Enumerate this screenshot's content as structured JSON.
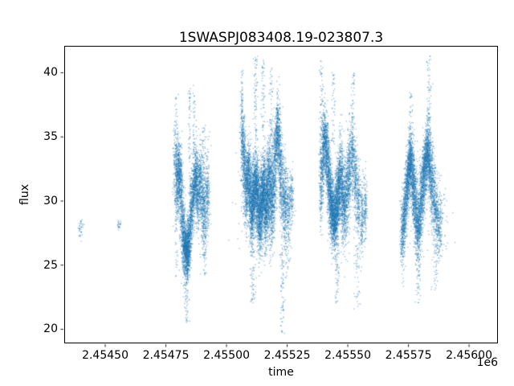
{
  "chart_data": {
    "type": "scatter",
    "title": "1SWASPJ083408.19-023807.3",
    "xlabel": "time",
    "ylabel": "flux",
    "offset_label": "1e6",
    "xlim": [
      2454331,
      2456119
    ],
    "ylim": [
      18.9,
      42.1
    ],
    "xticks": [
      2454500,
      2454750,
      2455000,
      2455250,
      2455500,
      2455750,
      2456000
    ],
    "xtick_labels": [
      "2.45450",
      "2.45475",
      "2.45500",
      "2.45525",
      "2.45550",
      "2.45575",
      "2.45600"
    ],
    "yticks": [
      20,
      25,
      30,
      35,
      40
    ],
    "ytick_labels": [
      "20",
      "25",
      "30",
      "35",
      "40"
    ],
    "grid": false,
    "legend": "none",
    "marker_color": "#1f77b4",
    "marker_alpha": 0.5,
    "marker_size_px": 1.3,
    "streak_format": "[time_center, time_sigma, flux_mean, flux_sigma, n_points]",
    "band_format": "[time_center, time_sigma, flux_min, flux_max, n_points]",
    "clusters": [
      {
        "name": "sparse-early-points",
        "streaks": [
          [
            2454398,
            5,
            27.7,
            0.35,
            25
          ],
          [
            2454404,
            4,
            28.3,
            0.2,
            12
          ],
          [
            2454556,
            5,
            28.15,
            0.25,
            22
          ]
        ],
        "bands": []
      },
      {
        "name": "season-1",
        "streaks": [
          [
            2454790,
            5,
            32.5,
            2.0,
            200
          ],
          [
            2454798,
            4,
            31.5,
            1.5,
            250
          ],
          [
            2454806,
            4,
            32.0,
            1.2,
            280
          ],
          [
            2454814,
            4,
            30.0,
            1.8,
            250
          ],
          [
            2454822,
            4,
            27.5,
            1.5,
            300
          ],
          [
            2454830,
            4,
            26.3,
            1.0,
            380
          ],
          [
            2454838,
            4,
            26.0,
            0.9,
            380
          ],
          [
            2454846,
            4,
            27.0,
            1.2,
            320
          ],
          [
            2454854,
            4,
            29.0,
            1.5,
            260
          ],
          [
            2454863,
            4,
            30.5,
            1.3,
            280
          ],
          [
            2454872,
            4,
            31.8,
            1.1,
            300
          ],
          [
            2454881,
            4,
            30.8,
            1.5,
            260
          ],
          [
            2454891,
            4,
            31.3,
            1.3,
            240
          ],
          [
            2454901,
            4,
            30.0,
            1.7,
            220
          ],
          [
            2454911,
            4,
            29.2,
            1.6,
            200
          ],
          [
            2454922,
            4,
            30.5,
            1.4,
            180
          ]
        ],
        "bands": [
          [
            2454795,
            4,
            24.0,
            38.5,
            60
          ],
          [
            2454836,
            5,
            20.5,
            25.0,
            70
          ],
          [
            2454848,
            3,
            33.0,
            38.8,
            50
          ],
          [
            2454866,
            3,
            33.5,
            39.2,
            40
          ],
          [
            2454908,
            6,
            24.0,
            28.0,
            40
          ],
          [
            2454900,
            15,
            32.0,
            36.0,
            60
          ]
        ]
      },
      {
        "name": "season-2",
        "streaks": [
          [
            2455065,
            4,
            35.0,
            1.4,
            220
          ],
          [
            2455073,
            4,
            33.0,
            1.6,
            240
          ],
          [
            2455081,
            4,
            31.0,
            1.4,
            280
          ],
          [
            2455089,
            4,
            32.0,
            1.4,
            280
          ],
          [
            2455097,
            4,
            30.5,
            1.5,
            320
          ],
          [
            2455105,
            4,
            29.3,
            1.4,
            360
          ],
          [
            2455113,
            4,
            30.3,
            1.4,
            380
          ],
          [
            2455121,
            4,
            31.3,
            1.4,
            380
          ],
          [
            2455129,
            4,
            30.0,
            1.5,
            380
          ],
          [
            2455137,
            4,
            28.8,
            1.4,
            380
          ],
          [
            2455145,
            4,
            29.8,
            1.4,
            400
          ],
          [
            2455153,
            4,
            30.8,
            1.5,
            400
          ],
          [
            2455161,
            4,
            29.5,
            1.6,
            380
          ],
          [
            2455169,
            4,
            30.5,
            1.7,
            360
          ],
          [
            2455177,
            4,
            31.5,
            1.8,
            330
          ],
          [
            2455185,
            4,
            30.0,
            2.0,
            300
          ],
          [
            2455193,
            4,
            31.0,
            2.0,
            280
          ],
          [
            2455201,
            4,
            33.0,
            1.8,
            260
          ],
          [
            2455209,
            4,
            35.3,
            1.3,
            280
          ],
          [
            2455217,
            4,
            34.3,
            1.6,
            240
          ],
          [
            2455225,
            4,
            32.0,
            1.8,
            220
          ],
          [
            2455234,
            4,
            30.5,
            1.8,
            200
          ],
          [
            2455243,
            4,
            29.8,
            1.6,
            180
          ],
          [
            2455255,
            5,
            29.3,
            1.4,
            160
          ],
          [
            2455267,
            5,
            30.0,
            1.3,
            140
          ]
        ],
        "bands": [
          [
            2455063,
            3,
            36.0,
            40.2,
            40
          ],
          [
            2455120,
            4,
            35.0,
            41.3,
            70
          ],
          [
            2455150,
            4,
            35.5,
            41.0,
            55
          ],
          [
            2455185,
            4,
            35.0,
            40.5,
            45
          ],
          [
            2455110,
            5,
            22.0,
            26.5,
            55
          ],
          [
            2455230,
            5,
            19.6,
            26.0,
            70
          ],
          [
            2455250,
            8,
            24.0,
            27.5,
            40
          ],
          [
            2455090,
            30,
            26.0,
            35.0,
            80
          ]
        ]
      },
      {
        "name": "season-3",
        "streaks": [
          [
            2455390,
            4,
            31.5,
            1.8,
            220
          ],
          [
            2455398,
            4,
            33.5,
            1.6,
            240
          ],
          [
            2455406,
            4,
            34.8,
            1.2,
            280
          ],
          [
            2455414,
            4,
            33.5,
            1.4,
            280
          ],
          [
            2455422,
            4,
            31.5,
            1.4,
            320
          ],
          [
            2455430,
            4,
            30.0,
            1.3,
            360
          ],
          [
            2455438,
            4,
            29.0,
            1.2,
            380
          ],
          [
            2455446,
            4,
            28.6,
            1.2,
            380
          ],
          [
            2455454,
            4,
            29.5,
            1.4,
            360
          ],
          [
            2455462,
            4,
            30.8,
            1.5,
            340
          ],
          [
            2455470,
            4,
            31.8,
            1.6,
            300
          ],
          [
            2455479,
            4,
            30.5,
            1.8,
            280
          ],
          [
            2455488,
            4,
            29.5,
            1.6,
            260
          ],
          [
            2455498,
            4,
            31.0,
            1.7,
            240
          ],
          [
            2455508,
            4,
            32.5,
            1.6,
            240
          ],
          [
            2455520,
            4,
            33.5,
            1.4,
            220
          ],
          [
            2455532,
            4,
            31.5,
            1.6,
            200
          ],
          [
            2455545,
            4,
            29.8,
            1.5,
            180
          ],
          [
            2455558,
            4,
            28.8,
            1.4,
            160
          ],
          [
            2455572,
            4,
            29.5,
            1.3,
            140
          ]
        ],
        "bands": [
          [
            2455392,
            4,
            35.0,
            41.0,
            50
          ],
          [
            2455440,
            4,
            34.0,
            40.5,
            45
          ],
          [
            2455520,
            4,
            36.0,
            40.0,
            35
          ],
          [
            2455455,
            5,
            22.0,
            26.0,
            50
          ],
          [
            2455540,
            8,
            21.5,
            26.5,
            45
          ],
          [
            2455480,
            25,
            25.0,
            35.0,
            70
          ]
        ]
      },
      {
        "name": "season-4",
        "streaks": [
          [
            2455725,
            4,
            27.3,
            1.3,
            220
          ],
          [
            2455733,
            4,
            28.8,
            1.3,
            250
          ],
          [
            2455741,
            4,
            30.5,
            1.3,
            280
          ],
          [
            2455749,
            4,
            32.0,
            1.2,
            300
          ],
          [
            2455757,
            4,
            33.2,
            1.1,
            320
          ],
          [
            2455765,
            4,
            32.3,
            1.3,
            300
          ],
          [
            2455773,
            4,
            30.8,
            1.4,
            280
          ],
          [
            2455781,
            4,
            29.3,
            1.4,
            260
          ],
          [
            2455789,
            4,
            28.0,
            1.3,
            250
          ],
          [
            2455797,
            4,
            28.8,
            1.3,
            250
          ],
          [
            2455805,
            4,
            30.3,
            1.4,
            260
          ],
          [
            2455813,
            4,
            31.8,
            1.3,
            280
          ],
          [
            2455821,
            4,
            33.0,
            1.2,
            300
          ],
          [
            2455829,
            4,
            33.8,
            1.2,
            300
          ],
          [
            2455838,
            4,
            32.8,
            1.4,
            280
          ],
          [
            2455847,
            4,
            31.5,
            1.5,
            240
          ],
          [
            2455857,
            4,
            30.0,
            1.5,
            210
          ],
          [
            2455868,
            4,
            28.8,
            1.4,
            180
          ],
          [
            2455880,
            5,
            28.0,
            1.3,
            150
          ]
        ],
        "bands": [
          [
            2455835,
            5,
            35.5,
            41.4,
            60
          ],
          [
            2455760,
            4,
            35.0,
            38.5,
            30
          ],
          [
            2455790,
            6,
            22.0,
            26.0,
            50
          ],
          [
            2455860,
            8,
            23.0,
            27.0,
            40
          ],
          [
            2455810,
            25,
            25.5,
            35.0,
            60
          ],
          [
            2455900,
            15,
            26.0,
            31.0,
            30
          ]
        ]
      }
    ]
  }
}
